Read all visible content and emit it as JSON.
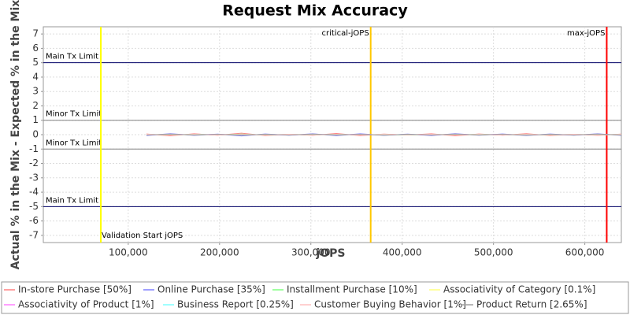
{
  "chart_data": {
    "type": "line",
    "title": "Request Mix Accuracy",
    "x_label": "jOPS",
    "y_label": "Actual % in the Mix - Expected % in the Mix",
    "xlim": [
      7000,
      640000
    ],
    "ylim": [
      -7.5,
      7.5
    ],
    "xticks": [
      {
        "value": 100000,
        "label": "100,000"
      },
      {
        "value": 200000,
        "label": "200,000"
      },
      {
        "value": 300000,
        "label": "300,000"
      },
      {
        "value": 400000,
        "label": "400,000"
      },
      {
        "value": 500000,
        "label": "500,000"
      },
      {
        "value": 600000,
        "label": "600,000"
      }
    ],
    "yticks": [
      -7,
      -6,
      -5,
      -4,
      -3,
      -2,
      -1,
      0,
      1,
      2,
      3,
      4,
      5,
      6,
      7
    ],
    "grid": true,
    "limits": [
      {
        "value": 5,
        "label": "Main Tx Limit",
        "color": "#000066"
      },
      {
        "value": 1,
        "label": "Minor Tx Limit",
        "color": "#808080"
      },
      {
        "value": -1,
        "label": "Minor Tx Limit",
        "color": "#808080"
      },
      {
        "value": -5,
        "label": "Main Tx Limit",
        "color": "#000066"
      }
    ],
    "markers": [
      {
        "value": 70000,
        "label": "Validation Start jOPS",
        "color": "#ffff00"
      },
      {
        "value": 365500,
        "label": "critical-jOPS",
        "color": "#ffc800"
      },
      {
        "value": 624000,
        "label": "max-jOPS",
        "color": "#ff0000"
      }
    ],
    "x": [
      120000,
      146000,
      172000,
      198000,
      224000,
      250000,
      276000,
      302000,
      328000,
      354000,
      380000,
      406000,
      432000,
      458000,
      484000,
      510000,
      536000,
      562000,
      588000,
      614000,
      640000
    ],
    "series": [
      {
        "name": "In-store Purchase [50%]",
        "color": "#ff8080",
        "values": [
          0.05,
          -0.08,
          0.06,
          -0.04,
          0.1,
          -0.06,
          0.03,
          -0.05,
          0.08,
          -0.07,
          0.04,
          -0.03,
          0.06,
          -0.08,
          0.05,
          -0.04,
          0.07,
          -0.06,
          0.03,
          -0.05,
          0.04
        ]
      },
      {
        "name": "Online Purchase [35%]",
        "color": "#8080ff",
        "values": [
          -0.06,
          0.07,
          -0.05,
          0.04,
          -0.09,
          0.05,
          -0.04,
          0.06,
          -0.07,
          0.06,
          -0.05,
          0.04,
          -0.06,
          0.07,
          -0.04,
          0.05,
          -0.06,
          0.05,
          -0.04,
          0.06,
          -0.05
        ]
      },
      {
        "name": "Installment Purchase [10%]",
        "color": "#80ff80",
        "values": [
          0.02,
          -0.03,
          0.03,
          -0.02,
          0.04,
          -0.03,
          0.02,
          -0.02,
          0.03,
          -0.02,
          0.02,
          -0.03,
          0.02,
          -0.02,
          0.03,
          -0.02,
          0.02,
          -0.03,
          0.02,
          -0.02,
          0.02
        ]
      },
      {
        "name": "Associativity of Category [0.1%]",
        "color": "#ffff80",
        "values": [
          0.01,
          0.0,
          -0.01,
          0.01,
          0.0,
          -0.01,
          0.01,
          0.0,
          -0.01,
          0.01,
          0.0,
          -0.01,
          0.01,
          0.0,
          -0.01,
          0.01,
          0.0,
          -0.01,
          0.01,
          0.0,
          -0.01
        ]
      },
      {
        "name": "Associativity of Product [1%]",
        "color": "#ff80ff",
        "values": [
          -0.02,
          0.02,
          -0.01,
          0.02,
          -0.02,
          0.01,
          -0.02,
          0.02,
          -0.01,
          0.02,
          -0.02,
          0.01,
          -0.02,
          0.02,
          -0.01,
          0.02,
          -0.02,
          0.01,
          -0.02,
          0.02,
          -0.01
        ]
      },
      {
        "name": "Business Report [0.25%]",
        "color": "#80ffff",
        "values": [
          0.01,
          -0.01,
          0.01,
          -0.01,
          0.01,
          -0.01,
          0.01,
          -0.01,
          0.01,
          -0.01,
          0.01,
          -0.01,
          0.01,
          -0.01,
          0.01,
          -0.01,
          0.01,
          -0.01,
          0.01,
          -0.01,
          0.01
        ]
      },
      {
        "name": "Customer Buying Behavior [1%]",
        "color": "#ffc0c0",
        "values": [
          0.03,
          -0.02,
          0.02,
          -0.03,
          0.02,
          -0.02,
          0.03,
          -0.02,
          0.02,
          -0.03,
          0.02,
          -0.02,
          0.03,
          -0.02,
          0.02,
          -0.03,
          0.02,
          -0.02,
          0.03,
          -0.02,
          0.02
        ]
      },
      {
        "name": "Product Return [2.65%]",
        "color": "#a0a0a0",
        "values": [
          -0.03,
          0.04,
          -0.03,
          0.03,
          -0.04,
          0.03,
          -0.03,
          0.04,
          -0.03,
          0.03,
          -0.04,
          0.03,
          -0.03,
          0.04,
          -0.03,
          0.03,
          -0.04,
          0.03,
          -0.03,
          0.04,
          -0.03
        ]
      }
    ]
  }
}
